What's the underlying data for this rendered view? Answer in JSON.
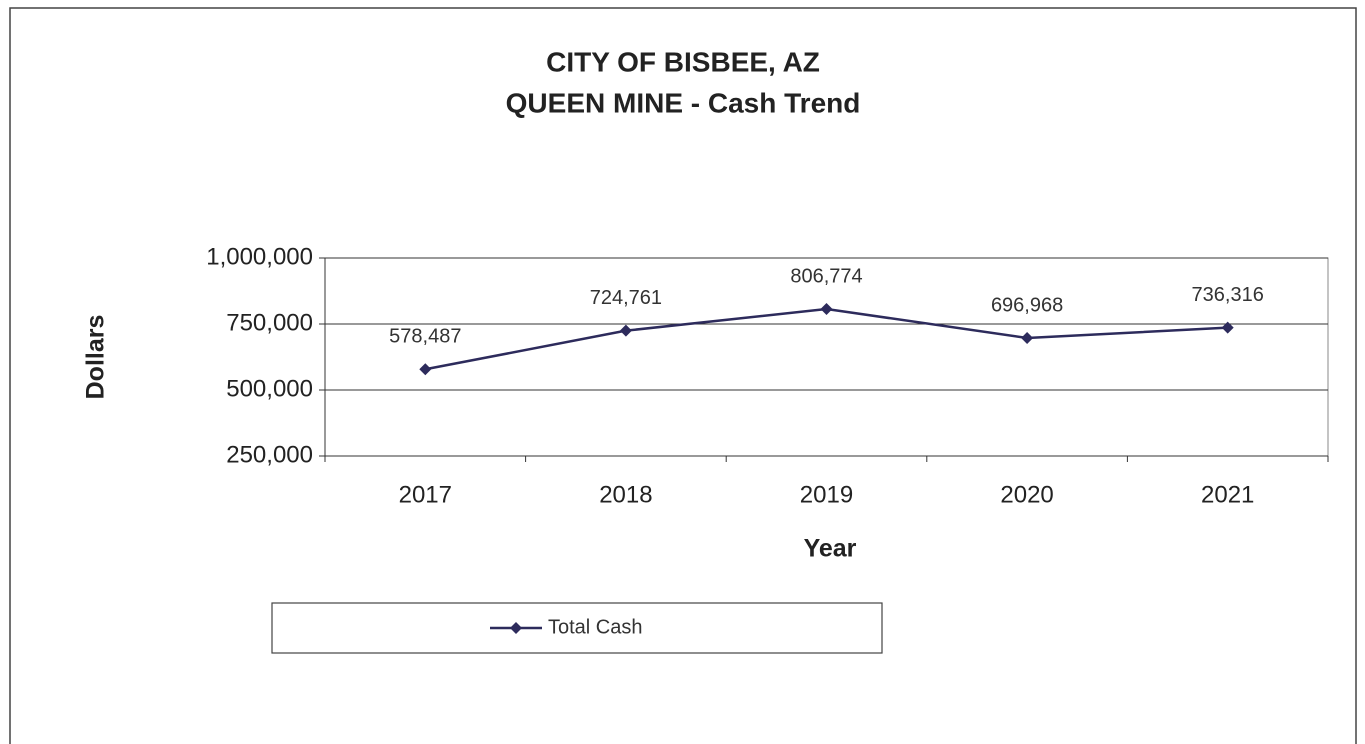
{
  "chart_data": {
    "type": "line",
    "title": "CITY OF BISBEE, AZ",
    "subtitle": "QUEEN MINE - Cash Trend",
    "x_label": "Year",
    "y_label": "Dollars",
    "categories": [
      "2017",
      "2018",
      "2019",
      "2020",
      "2021"
    ],
    "series": [
      {
        "name": "Total Cash",
        "color": "#2d2b5c",
        "values": [
          578487,
          724761,
          806774,
          696968,
          736316
        ],
        "value_labels": [
          "578,487",
          "724,761",
          "806,774",
          "696,968",
          "736,316"
        ]
      }
    ],
    "ylim": [
      250000,
      1000000
    ],
    "yticks": [
      {
        "value": 250000,
        "label": "250,000"
      },
      {
        "value": 500000,
        "label": "500,000"
      },
      {
        "value": 750000,
        "label": "750,000"
      },
      {
        "value": 1000000,
        "label": "1,000,000"
      }
    ],
    "grid": true,
    "legend": "bottom"
  }
}
